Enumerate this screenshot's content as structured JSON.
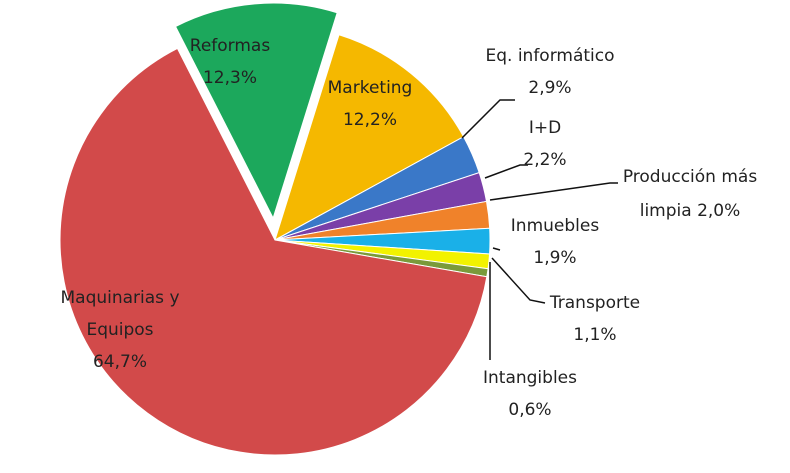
{
  "chart_data": {
    "type": "pie",
    "categories": [
      "Reformas",
      "Marketing",
      "Eq. informático",
      "I+D",
      "Producción más limpia",
      "Inmuebles",
      "Transporte",
      "Intangibles",
      "Maquinarias y Equipos"
    ],
    "values": [
      12.3,
      12.2,
      2.9,
      2.2,
      2.0,
      1.9,
      1.1,
      0.6,
      64.7
    ],
    "value_labels": [
      "12,3%",
      "12,2%",
      "2,9%",
      "2,2%",
      "2,0%",
      "1,9%",
      "1,1%",
      "0,6%",
      "64,7%"
    ],
    "colors": [
      "#1ca85c",
      "#f5b800",
      "#3a78c8",
      "#7a3fa8",
      "#f0822a",
      "#1ab0e8",
      "#f2f200",
      "#7a9a3a",
      "#d24a4a"
    ]
  }
}
